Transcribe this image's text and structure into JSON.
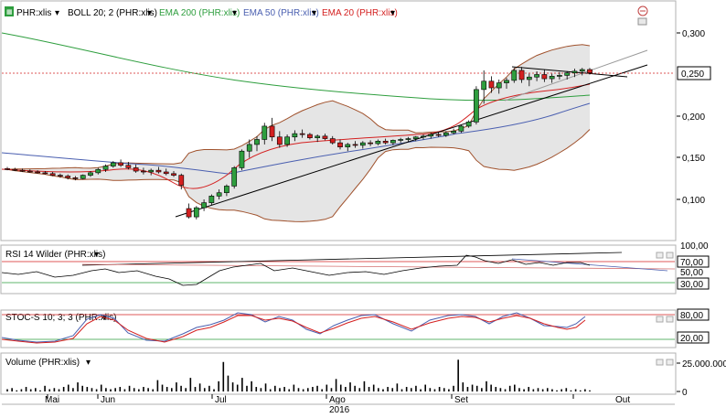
{
  "legend": {
    "symbol": "PHR:xlis",
    "boll": "BOLL 20; 2 (PHR:xlis)",
    "ema200": "EMA 200 (PHR:xlis)",
    "ema50": "EMA 50 (PHR:xlis)",
    "ema20": "EMA 20 (PHR:xlis)",
    "rsi": "RSI 14 Wilder (PHR:xlis)",
    "stoc": "STOC-S 10; 3; 3 (PHR:xlis)",
    "volume": "Volume (PHR:xlis)"
  },
  "colors": {
    "ema200": "#2e9e3e",
    "ema50": "#4a5fb0",
    "ema20": "#d42020",
    "boll": "#a0522d",
    "up": "#2e9e3e",
    "down": "#d42020"
  },
  "price_axis": {
    "ticks": [
      "0,300",
      "0,250",
      "0,200",
      "0,150",
      "0,100"
    ],
    "current": "0,250"
  },
  "rsi_axis": {
    "ticks": [
      "100,00",
      "70,00",
      "50,00",
      "30,00"
    ]
  },
  "stoc_axis": {
    "ticks": [
      "80,00",
      "20,00"
    ]
  },
  "volume_axis": {
    "ticks": [
      "25.000.000",
      "0"
    ]
  },
  "time_axis": {
    "months": [
      "Mai",
      "Jun",
      "Jul",
      "Ago",
      "Set",
      "Out"
    ],
    "year": "2016"
  },
  "chart_data": {
    "type": "candlestick",
    "ylim": [
      0.06,
      0.32
    ],
    "ohlc": [
      [
        0.137,
        0.139,
        0.135,
        0.136
      ],
      [
        0.136,
        0.138,
        0.134,
        0.135
      ],
      [
        0.135,
        0.137,
        0.133,
        0.134
      ],
      [
        0.134,
        0.136,
        0.132,
        0.133
      ],
      [
        0.133,
        0.135,
        0.131,
        0.132
      ],
      [
        0.132,
        0.134,
        0.13,
        0.131
      ],
      [
        0.131,
        0.133,
        0.128,
        0.129
      ],
      [
        0.129,
        0.131,
        0.126,
        0.128
      ],
      [
        0.128,
        0.13,
        0.124,
        0.126
      ],
      [
        0.126,
        0.128,
        0.123,
        0.125
      ],
      [
        0.125,
        0.13,
        0.124,
        0.129
      ],
      [
        0.129,
        0.134,
        0.127,
        0.132
      ],
      [
        0.132,
        0.138,
        0.13,
        0.136
      ],
      [
        0.136,
        0.142,
        0.133,
        0.14
      ],
      [
        0.14,
        0.146,
        0.138,
        0.144
      ],
      [
        0.144,
        0.148,
        0.139,
        0.141
      ],
      [
        0.141,
        0.145,
        0.136,
        0.138
      ],
      [
        0.138,
        0.142,
        0.132,
        0.134
      ],
      [
        0.134,
        0.138,
        0.13,
        0.133
      ],
      [
        0.133,
        0.137,
        0.129,
        0.135
      ],
      [
        0.135,
        0.139,
        0.131,
        0.133
      ],
      [
        0.133,
        0.137,
        0.129,
        0.131
      ],
      [
        0.131,
        0.134,
        0.127,
        0.129
      ],
      [
        0.129,
        0.131,
        0.112,
        0.117
      ],
      [
        0.089,
        0.095,
        0.077,
        0.079
      ],
      [
        0.079,
        0.092,
        0.076,
        0.09
      ],
      [
        0.09,
        0.1,
        0.086,
        0.096
      ],
      [
        0.096,
        0.106,
        0.093,
        0.104
      ],
      [
        0.104,
        0.112,
        0.1,
        0.108
      ],
      [
        0.108,
        0.118,
        0.104,
        0.116
      ],
      [
        0.116,
        0.14,
        0.113,
        0.138
      ],
      [
        0.138,
        0.16,
        0.135,
        0.158
      ],
      [
        0.158,
        0.172,
        0.15,
        0.166
      ],
      [
        0.166,
        0.176,
        0.158,
        0.172
      ],
      [
        0.172,
        0.192,
        0.166,
        0.188
      ],
      [
        0.188,
        0.198,
        0.17,
        0.175
      ],
      [
        0.175,
        0.182,
        0.162,
        0.166
      ],
      [
        0.166,
        0.178,
        0.163,
        0.175
      ],
      [
        0.175,
        0.183,
        0.17,
        0.179
      ],
      [
        0.179,
        0.184,
        0.174,
        0.178
      ],
      [
        0.178,
        0.18,
        0.172,
        0.174
      ],
      [
        0.174,
        0.178,
        0.169,
        0.176
      ],
      [
        0.176,
        0.179,
        0.171,
        0.173
      ],
      [
        0.173,
        0.176,
        0.166,
        0.168
      ],
      [
        0.168,
        0.172,
        0.16,
        0.163
      ],
      [
        0.163,
        0.168,
        0.158,
        0.166
      ],
      [
        0.166,
        0.17,
        0.162,
        0.165
      ],
      [
        0.165,
        0.17,
        0.161,
        0.168
      ],
      [
        0.168,
        0.171,
        0.164,
        0.167
      ],
      [
        0.167,
        0.172,
        0.165,
        0.17
      ],
      [
        0.17,
        0.173,
        0.166,
        0.168
      ],
      [
        0.168,
        0.172,
        0.165,
        0.171
      ],
      [
        0.171,
        0.174,
        0.168,
        0.172
      ],
      [
        0.172,
        0.175,
        0.169,
        0.173
      ],
      [
        0.173,
        0.176,
        0.17,
        0.175
      ],
      [
        0.175,
        0.178,
        0.172,
        0.176
      ],
      [
        0.176,
        0.18,
        0.173,
        0.178
      ],
      [
        0.178,
        0.181,
        0.175,
        0.177
      ],
      [
        0.177,
        0.182,
        0.175,
        0.18
      ],
      [
        0.18,
        0.185,
        0.178,
        0.182
      ],
      [
        0.182,
        0.19,
        0.18,
        0.188
      ],
      [
        0.188,
        0.195,
        0.186,
        0.193
      ],
      [
        0.193,
        0.236,
        0.19,
        0.232
      ],
      [
        0.232,
        0.255,
        0.215,
        0.242
      ],
      [
        0.242,
        0.248,
        0.228,
        0.234
      ],
      [
        0.234,
        0.244,
        0.227,
        0.24
      ],
      [
        0.24,
        0.246,
        0.233,
        0.243
      ],
      [
        0.243,
        0.258,
        0.24,
        0.255
      ],
      [
        0.255,
        0.259,
        0.24,
        0.244
      ],
      [
        0.244,
        0.251,
        0.236,
        0.247
      ],
      [
        0.247,
        0.254,
        0.242,
        0.25
      ],
      [
        0.25,
        0.256,
        0.241,
        0.245
      ],
      [
        0.245,
        0.251,
        0.24,
        0.248
      ],
      [
        0.248,
        0.253,
        0.244,
        0.249
      ],
      [
        0.249,
        0.254,
        0.244,
        0.252
      ],
      [
        0.252,
        0.257,
        0.247,
        0.254
      ],
      [
        0.254,
        0.258,
        0.249,
        0.256
      ],
      [
        0.256,
        0.258,
        0.25,
        0.252
      ]
    ]
  }
}
